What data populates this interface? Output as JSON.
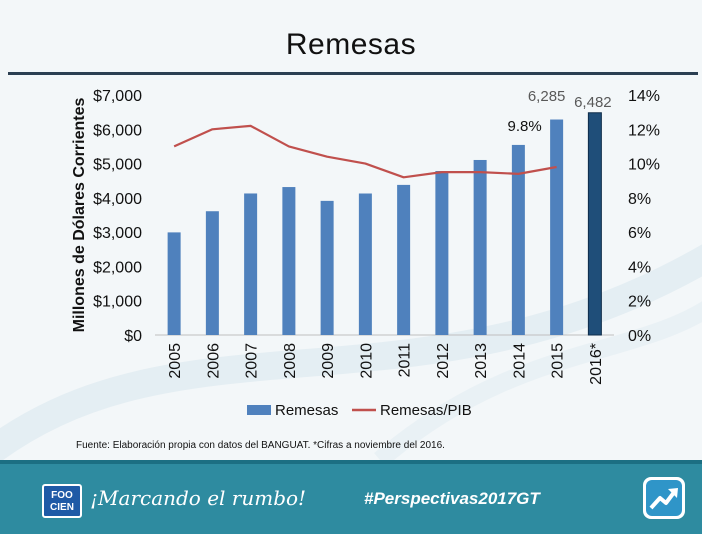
{
  "title": "Remesas",
  "source_note": "Fuente: Elaboración propia con datos del BANGUAT. *Cifras a noviembre del 2016.",
  "footer": {
    "logo_text": "FOO CIEN",
    "slogan": "¡Marcando el rumbo!",
    "hashtag": "#Perspectivas2017GT",
    "icon": "trend-up-arrow-icon"
  },
  "colors": {
    "bar": "#4f81bd",
    "bar_highlight": "#1f4e79",
    "line": "#c0504d",
    "footer": "#2e8ba0"
  },
  "chart_data": {
    "type": "bar",
    "categories": [
      "2005",
      "2006",
      "2007",
      "2008",
      "2009",
      "2010",
      "2011",
      "2012",
      "2013",
      "2014",
      "2015",
      "2016*"
    ],
    "series": [
      {
        "name": "Remesas",
        "type": "bar",
        "axis": "left",
        "values": [
          2993,
          3610,
          4128,
          4315,
          3912,
          4127,
          4378,
          4783,
          5105,
          5544,
          6285,
          6482
        ]
      },
      {
        "name": "Remesas/PIB",
        "type": "line",
        "axis": "right",
        "values": [
          11.0,
          12.0,
          12.2,
          11.0,
          10.4,
          10.0,
          9.2,
          9.5,
          9.5,
          9.4,
          9.8,
          null
        ]
      }
    ],
    "data_labels": [
      {
        "series": "Remesas",
        "category": "2015",
        "text": "6,285"
      },
      {
        "series": "Remesas",
        "category": "2016*",
        "text": "6,482"
      },
      {
        "series": "Remesas/PIB",
        "category": "2015",
        "text": "9.8%"
      }
    ],
    "ylabel": "Millones de Dólares  Corrientes",
    "ylim": [
      0,
      7000
    ],
    "yticks": [
      "$0",
      "$1,000",
      "$2,000",
      "$3,000",
      "$4,000",
      "$5,000",
      "$6,000",
      "$7,000"
    ],
    "y2lim": [
      0,
      14
    ],
    "y2ticks": [
      "0%",
      "2%",
      "4%",
      "6%",
      "8%",
      "10%",
      "12%",
      "14%"
    ],
    "highlight_category": "2016*",
    "legend": "bottom",
    "grid": false
  }
}
